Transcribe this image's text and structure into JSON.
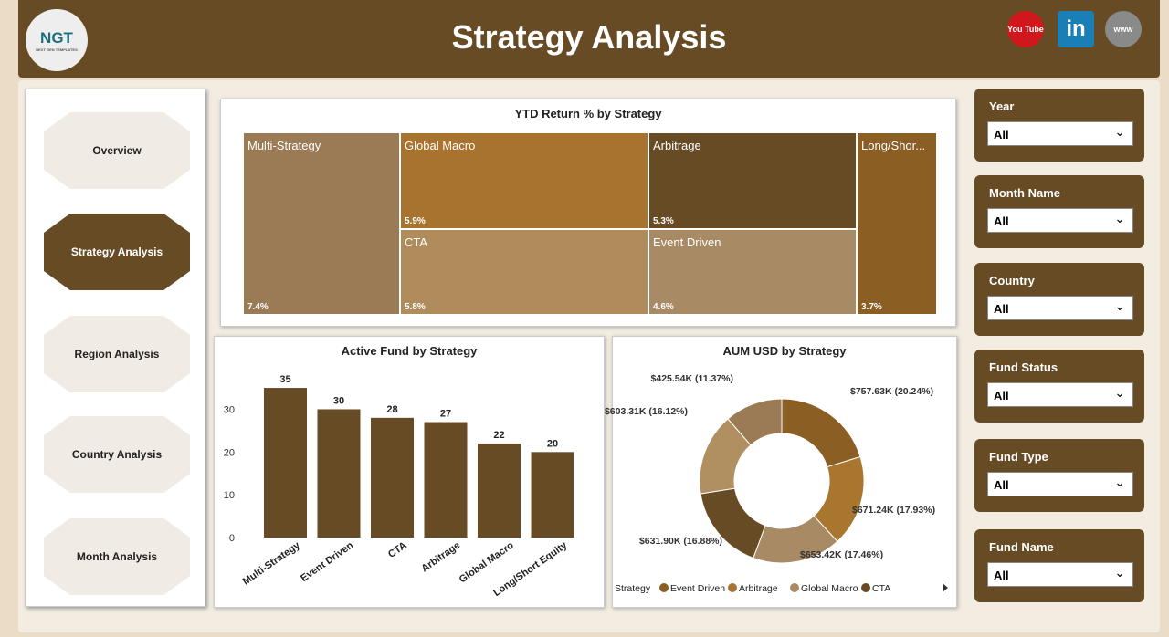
{
  "header": {
    "title": "Strategy Analysis",
    "logo_text": "NGT",
    "logo_sub": "NEXT GEN TEMPLATES",
    "social": [
      {
        "icon": "youtube-icon",
        "label": "You Tube",
        "color": "#d1161c"
      },
      {
        "icon": "linkedin-icon",
        "label": "in",
        "color": "#1a7fb6"
      },
      {
        "icon": "globe-icon",
        "label": "www",
        "color": "#8a8a8a"
      }
    ]
  },
  "nav": [
    "Overview",
    "Strategy Analysis",
    "Region Analysis",
    "Country Analysis",
    "Month Analysis"
  ],
  "treemap": {
    "title": "YTD Return % by Strategy",
    "items": [
      {
        "name": "Multi-Strategy",
        "value": "7.4%",
        "color": "#9a7b55"
      },
      {
        "name": "Global Macro",
        "value": "5.9%",
        "color": "#a8732e"
      },
      {
        "name": "CTA",
        "value": "5.8%",
        "color": "#b08c5c"
      },
      {
        "name": "Arbitrage",
        "value": "5.3%",
        "color": "#664b25"
      },
      {
        "name": "Event Driven",
        "value": "4.6%",
        "color": "#a88b65"
      },
      {
        "name": "Long/Shor...",
        "value": "3.7%",
        "color": "#8b5e24"
      }
    ]
  },
  "chart_data": [
    {
      "type": "bar",
      "title": "Active Fund by Strategy",
      "categories": [
        "Multi-Strategy",
        "Event Driven",
        "CTA",
        "Arbitrage",
        "Global Macro",
        "Long/Short Equity"
      ],
      "values": [
        35,
        30,
        28,
        27,
        22,
        20
      ],
      "yticks": [
        0,
        10,
        20,
        30
      ],
      "ylim": [
        0,
        38
      ],
      "color": "#664b25"
    },
    {
      "type": "pie",
      "title": "AUM USD by Strategy",
      "values": [
        757.63,
        671.24,
        653.42,
        631.9,
        603.31,
        425.54
      ],
      "labels": [
        "$757.63K (20.24%)",
        "$671.24K (17.93%)",
        "$653.42K (17.46%)",
        "$631.90K (16.88%)",
        "$603.31K (16.12%)",
        "$425.54K (11.37%)"
      ],
      "colors": [
        "#8b5e24",
        "#a8762f",
        "#a88b65",
        "#664b25",
        "#b08f60",
        "#9a7b55"
      ],
      "legend_title": "Strategy",
      "legend": [
        {
          "name": "Event Driven",
          "color": "#8b5e24"
        },
        {
          "name": "Arbitrage",
          "color": "#a8762f"
        },
        {
          "name": "Global Macro",
          "color": "#a88b65"
        },
        {
          "name": "CTA",
          "color": "#664b25"
        }
      ]
    }
  ],
  "slicers": [
    {
      "label": "Year",
      "value": "All"
    },
    {
      "label": "Month Name",
      "value": "All"
    },
    {
      "label": "Country",
      "value": "All"
    },
    {
      "label": "Fund Status",
      "value": "All"
    },
    {
      "label": "Fund Type",
      "value": "All"
    },
    {
      "label": "Fund Name",
      "value": "All"
    }
  ]
}
